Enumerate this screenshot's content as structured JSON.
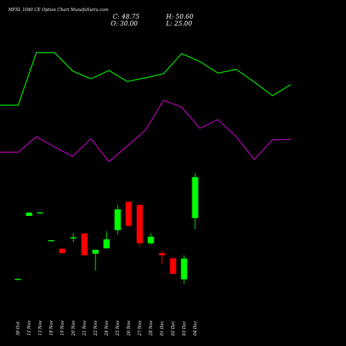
{
  "header": {
    "title": "MFSL 1040 CE Option Chart MunafaSutra.com",
    "close_label": "C: 48.75",
    "open_label": "O: 30.00",
    "high_label": "H: 50.60",
    "low_label": "L: 25.00"
  },
  "colors": {
    "background": "#000000",
    "up": "#00ff00",
    "down": "#ff0000",
    "line1": "#00ff00",
    "line2": "#cc00cc",
    "text": "#ffffff"
  },
  "chart_data": {
    "type": "candlestick",
    "x": [
      "30 Oct",
      "12 Nov",
      "13 Nov",
      "18 Nov",
      "19 Nov",
      "20 Nov",
      "21 Nov",
      "22 Nov",
      "24 Nov",
      "25 Nov",
      "26 Nov",
      "27 Nov",
      "28 Nov",
      "01 Dec",
      "02 Dec",
      "03 Dec",
      "04 Dec"
    ],
    "ylim": [
      0,
      50.6
    ],
    "candles": [
      {
        "o": 2.2,
        "h": 2.4,
        "l": 2.0,
        "c": 2.2
      },
      {
        "o": 31.0,
        "h": 32.5,
        "l": 31.0,
        "c": 32.5
      },
      {
        "o": 32.6,
        "h": 32.8,
        "l": 32.4,
        "c": 32.6
      },
      {
        "o": 19.9,
        "h": 20.1,
        "l": 19.7,
        "c": 19.9
      },
      {
        "o": 16.0,
        "h": 16.0,
        "l": 14.0,
        "c": 14.0
      },
      {
        "o": 20.7,
        "h": 23.0,
        "l": 19.0,
        "c": 21.2
      },
      {
        "o": 23.0,
        "h": 23.0,
        "l": 12.8,
        "c": 13.0
      },
      {
        "o": 13.7,
        "h": 15.5,
        "l": 6.0,
        "c": 15.5
      },
      {
        "o": 16.2,
        "h": 24.0,
        "l": 16.0,
        "c": 20.3
      },
      {
        "o": 24.5,
        "h": 36.0,
        "l": 22.5,
        "c": 34.0
      },
      {
        "o": 37.5,
        "h": 37.5,
        "l": 26.0,
        "c": 26.5
      },
      {
        "o": 36.0,
        "h": 36.0,
        "l": 17.0,
        "c": 18.5
      },
      {
        "o": 18.5,
        "h": 23.0,
        "l": 18.0,
        "c": 21.5
      },
      {
        "o": 14.0,
        "h": 15.0,
        "l": 9.0,
        "c": 13.0
      },
      {
        "o": 11.6,
        "h": 11.6,
        "l": 4.5,
        "c": 4.5
      },
      {
        "o": 2.0,
        "h": 13.0,
        "l": 0.0,
        "c": 11.5
      },
      {
        "o": 30.0,
        "h": 50.6,
        "l": 25.0,
        "c": 48.75
      }
    ],
    "series": [
      {
        "values": [
          0.0,
          0.0,
          1.0,
          1.0,
          0.65,
          0.5,
          0.66,
          0.45,
          0.52,
          0.6,
          0.98,
          0.83,
          0.61,
          0.68,
          0.44,
          0.18,
          0.39
        ]
      },
      {
        "values": [
          0.0,
          0.0,
          0.3,
          0.1,
          -0.08,
          0.26,
          -0.18,
          0.12,
          0.42,
          1.0,
          0.87,
          0.46,
          0.63,
          0.3,
          -0.14,
          0.24,
          0.25
        ]
      }
    ]
  }
}
